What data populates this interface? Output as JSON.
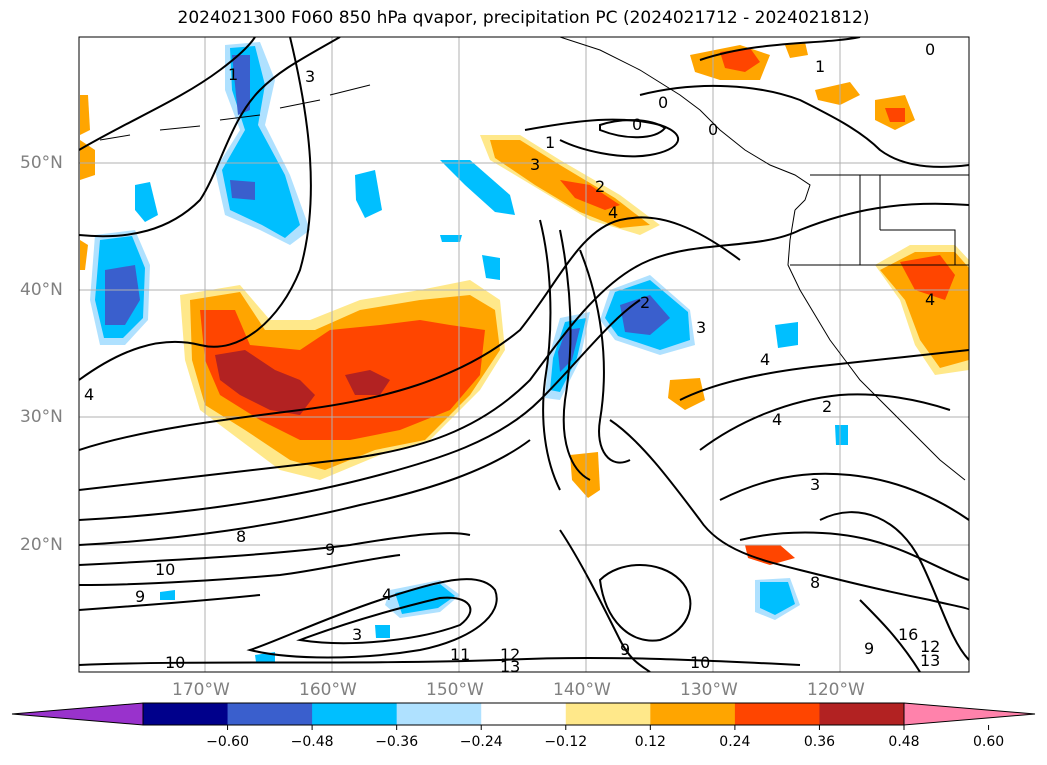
{
  "title": "2024021300 F060 850 hPa qvapor, precipitation PC (2024021712 - 2024021812)",
  "lat_labels": [
    "50°N",
    "40°N",
    "30°N",
    "20°N"
  ],
  "lon_labels": [
    "170°W",
    "160°W",
    "150°W",
    "140°W",
    "130°W",
    "120°W"
  ],
  "colorbar": {
    "tick_labels": [
      "−0.60",
      "−0.48",
      "−0.36",
      "−0.24",
      "−0.12",
      "0.12",
      "0.24",
      "0.36",
      "0.48",
      "0.60"
    ],
    "colors": [
      "#9932CC",
      "#00008B",
      "#3A5FCD",
      "#00BFFF",
      "#AFE1FF",
      "#FFFFFF",
      "#FFE88A",
      "#FFA500",
      "#FF4500",
      "#B22222",
      "#FF82AB"
    ]
  },
  "contour_labels": {
    "c1": "1",
    "c2": "2",
    "c3": "3",
    "c4": "4",
    "c0": "0",
    "c8": "8",
    "c9": "9",
    "c10": "10",
    "c11": "11",
    "c12": "12",
    "c13": "13",
    "c16": "16"
  }
}
